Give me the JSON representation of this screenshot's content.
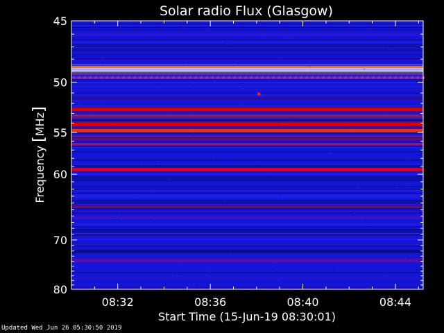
{
  "chart_data": {
    "type": "heatmap",
    "title": "Solar radio Flux (Glasgow)",
    "xlabel": "Start Time (15-Jun-19 08:30:01)",
    "ylabel_main": "Frequency ",
    "ylabel_unit_open": "[",
    "ylabel_unit": "MHz",
    "ylabel_unit_close": "]",
    "x_ticks": [
      "08:32",
      "08:36",
      "08:40",
      "08:44"
    ],
    "x_tick_minutes": [
      32,
      36,
      40,
      44
    ],
    "x_range_minutes": [
      30.0,
      45.2
    ],
    "y_ticks": [
      "45",
      "50",
      "55",
      "60",
      "70",
      "80"
    ],
    "y_tick_values": [
      45,
      50,
      55,
      60,
      70,
      80
    ],
    "y_range": [
      45,
      80
    ],
    "y_scale": "reciprocal",
    "background_color": "#1515d8",
    "bands": [
      {
        "freq": 48.9,
        "color": "#fff6e0"
      },
      {
        "freq": 48.6,
        "color": "#ff9a40"
      },
      {
        "freq": 49.2,
        "color": "#ff9a40"
      },
      {
        "freq": 49.6,
        "color": "#b81050"
      },
      {
        "freq": 51.5,
        "color": "#6010a0"
      },
      {
        "freq": 52.6,
        "color": "#f00000"
      },
      {
        "freq": 53.3,
        "color": "#ff2010"
      },
      {
        "freq": 54.1,
        "color": "#f00000"
      },
      {
        "freq": 54.8,
        "color": "#ff5020"
      },
      {
        "freq": 55.6,
        "color": "#e00000"
      },
      {
        "freq": 56.3,
        "color": "#a01070"
      },
      {
        "freq": 59.4,
        "color": "#e80010"
      },
      {
        "freq": 64.5,
        "color": "#d00020"
      },
      {
        "freq": 66.2,
        "color": "#4010b0"
      },
      {
        "freq": 73.9,
        "color": "#5a10a8"
      },
      {
        "freq": 72.1,
        "color": "#0a0a80"
      }
    ],
    "point_burst": {
      "minute": 38.1,
      "freq": 51.1,
      "color": "#ff2020"
    }
  },
  "footer": "Updated Wed Jun 26 05:30:50 2019"
}
